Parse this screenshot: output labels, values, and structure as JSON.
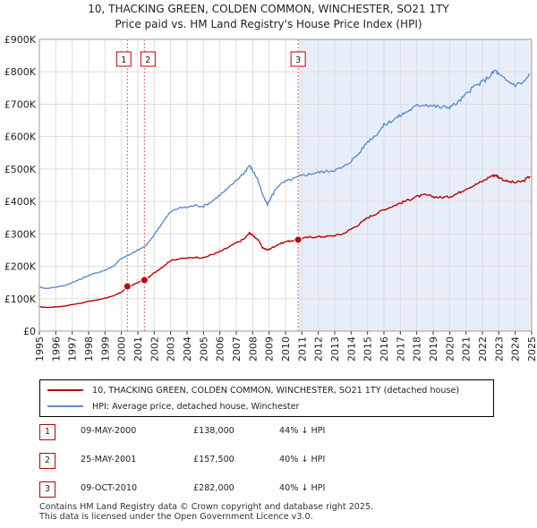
{
  "title_line1": "10, THACKING GREEN, COLDEN COMMON, WINCHESTER, SO21 1TY",
  "title_line2": "Price paid vs. HM Land Registry's House Price Index (HPI)",
  "colors": {
    "property": "#c00000",
    "hpi": "#5b8fce",
    "band": "#e8eef9",
    "grid": "#dddddd",
    "marker_line": "#e06666"
  },
  "chart_data": {
    "type": "line",
    "title": "Price paid vs. HM Land Registry's House Price Index (HPI)",
    "xlim": [
      1995,
      2025
    ],
    "ylim": [
      0,
      900000
    ],
    "x_ticks": [
      "1995",
      "1996",
      "1997",
      "1998",
      "1999",
      "2000",
      "2001",
      "2002",
      "2003",
      "2004",
      "2005",
      "2006",
      "2007",
      "2008",
      "2009",
      "2010",
      "2011",
      "2012",
      "2013",
      "2014",
      "2015",
      "2016",
      "2017",
      "2018",
      "2019",
      "2020",
      "2021",
      "2022",
      "2023",
      "2024",
      "2025"
    ],
    "y_ticks": [
      {
        "value": 0,
        "label": "£0"
      },
      {
        "value": 100000,
        "label": "£100K"
      },
      {
        "value": 200000,
        "label": "£200K"
      },
      {
        "value": 300000,
        "label": "£300K"
      },
      {
        "value": 400000,
        "label": "£400K"
      },
      {
        "value": 500000,
        "label": "£500K"
      },
      {
        "value": 600000,
        "label": "£600K"
      },
      {
        "value": 700000,
        "label": "£700K"
      },
      {
        "value": 800000,
        "label": "£800K"
      },
      {
        "value": 900000,
        "label": "£900K"
      }
    ],
    "series": [
      {
        "name": "10, THACKING GREEN, COLDEN COMMON, WINCHESTER, SO21 1TY (detached house)",
        "color": "#c00000",
        "x": [
          1995.0,
          1995.5,
          1996.0,
          1996.5,
          1997.0,
          1997.5,
          1998.0,
          1998.5,
          1999.0,
          1999.5,
          2000.0,
          2000.36,
          2000.6,
          2001.0,
          2001.4,
          2001.6,
          2002.0,
          2002.5,
          2003.0,
          2003.5,
          2004.0,
          2004.5,
          2005.0,
          2005.5,
          2006.0,
          2006.5,
          2007.0,
          2007.5,
          2007.8,
          2008.0,
          2008.3,
          2008.6,
          2008.9,
          2009.2,
          2009.5,
          2010.0,
          2010.5,
          2010.77,
          2011.0,
          2011.5,
          2012.0,
          2012.5,
          2013.0,
          2013.5,
          2014.0,
          2014.5,
          2015.0,
          2015.5,
          2016.0,
          2016.5,
          2017.0,
          2017.5,
          2018.0,
          2018.5,
          2019.0,
          2019.5,
          2020.0,
          2020.5,
          2021.0,
          2021.5,
          2022.0,
          2022.5,
          2022.8,
          2023.0,
          2023.5,
          2024.0,
          2024.5,
          2024.9
        ],
        "values": [
          75000,
          73000,
          75000,
          77000,
          82000,
          86000,
          92000,
          96000,
          102000,
          108000,
          120000,
          138000,
          140000,
          150000,
          157500,
          163000,
          180000,
          198000,
          218000,
          223000,
          225000,
          228000,
          226000,
          236000,
          245000,
          258000,
          272000,
          285000,
          303000,
          296000,
          283000,
          258000,
          250000,
          258000,
          266000,
          276000,
          280000,
          282000,
          286000,
          290000,
          291000,
          292000,
          295000,
          300000,
          315000,
          330000,
          350000,
          362000,
          375000,
          385000,
          395000,
          405000,
          415000,
          420000,
          415000,
          412000,
          415000,
          425000,
          440000,
          450000,
          462000,
          478000,
          482000,
          475000,
          462000,
          458000,
          463000,
          478000
        ]
      },
      {
        "name": "HPI: Average price, detached house, Winchester",
        "color": "#5b8fce",
        "x": [
          1995.0,
          1995.5,
          1996.0,
          1996.5,
          1997.0,
          1997.5,
          1998.0,
          1998.5,
          1999.0,
          1999.5,
          2000.0,
          2000.5,
          2001.0,
          2001.5,
          2002.0,
          2002.5,
          2003.0,
          2003.5,
          2004.0,
          2004.5,
          2005.0,
          2005.5,
          2006.0,
          2006.5,
          2007.0,
          2007.5,
          2007.8,
          2008.0,
          2008.3,
          2008.6,
          2008.9,
          2009.2,
          2009.5,
          2010.0,
          2010.5,
          2011.0,
          2011.5,
          2012.0,
          2012.5,
          2013.0,
          2013.5,
          2014.0,
          2014.5,
          2015.0,
          2015.5,
          2016.0,
          2016.5,
          2017.0,
          2017.5,
          2018.0,
          2018.5,
          2019.0,
          2019.5,
          2020.0,
          2020.5,
          2021.0,
          2021.5,
          2022.0,
          2022.5,
          2022.8,
          2023.0,
          2023.5,
          2024.0,
          2024.5,
          2024.9
        ],
        "values": [
          135000,
          132000,
          136000,
          140000,
          150000,
          160000,
          172000,
          180000,
          188000,
          200000,
          225000,
          235000,
          250000,
          263000,
          298000,
          335000,
          368000,
          380000,
          382000,
          388000,
          385000,
          400000,
          420000,
          440000,
          465000,
          490000,
          512000,
          495000,
          470000,
          420000,
          390000,
          420000,
          446000,
          462000,
          470000,
          480000,
          485000,
          490000,
          493000,
          497000,
          505000,
          525000,
          550000,
          585000,
          605000,
          635000,
          650000,
          665000,
          680000,
          695000,
          700000,
          695000,
          690000,
          692000,
          705000,
          730000,
          755000,
          768000,
          790000,
          805000,
          790000,
          772000,
          760000,
          768000,
          792000
        ]
      }
    ],
    "sales": [
      {
        "num": "1",
        "x": 2000.36,
        "value": 138000,
        "date": "09-MAY-2000",
        "price": "£138,000",
        "hpi": "44% ↓ HPI"
      },
      {
        "num": "2",
        "x": 2001.4,
        "value": 157500,
        "date": "25-MAY-2001",
        "price": "£157,500",
        "hpi": "40% ↓ HPI"
      },
      {
        "num": "3",
        "x": 2010.77,
        "value": 282000,
        "date": "09-OCT-2010",
        "price": "£282,000",
        "hpi": "40% ↓ HPI"
      }
    ]
  },
  "legend": {
    "property": "10, THACKING GREEN, COLDEN COMMON, WINCHESTER, SO21 1TY (detached house)",
    "hpi": "HPI: Average price, detached house, Winchester"
  },
  "footer_line1": "Contains HM Land Registry data © Crown copyright and database right 2025.",
  "footer_line2": "This data is licensed under the Open Government Licence v3.0."
}
